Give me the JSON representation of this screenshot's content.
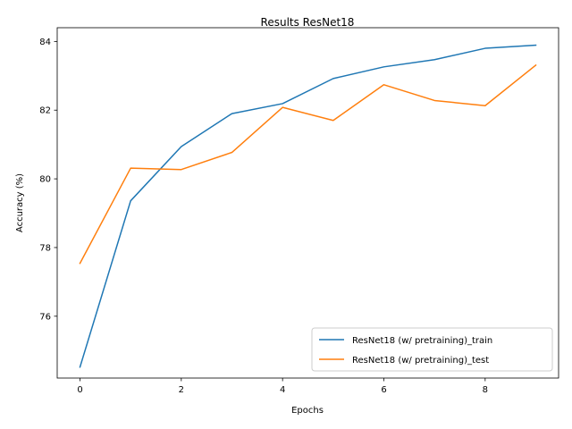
{
  "chart_data": {
    "type": "line",
    "title": "Results ResNet18",
    "xlabel": "Epochs",
    "ylabel": "Accuracy (%)",
    "x": [
      0,
      1,
      2,
      3,
      4,
      5,
      6,
      7,
      8,
      9
    ],
    "xlim": [
      -0.45,
      9.45
    ],
    "ylim": [
      74.2,
      84.4
    ],
    "xticks": [
      0,
      2,
      4,
      6,
      8
    ],
    "yticks": [
      76,
      78,
      80,
      82,
      84
    ],
    "grid": false,
    "legend": "lower-right",
    "series": [
      {
        "name": "ResNet18 (w/ pretraining)_train",
        "color": "#1f77b4",
        "values": [
          74.52,
          79.36,
          80.94,
          81.9,
          82.19,
          82.92,
          83.26,
          83.47,
          83.8,
          83.89
        ]
      },
      {
        "name": "ResNet18 (w/ pretraining)_test",
        "color": "#ff7f0e",
        "values": [
          77.54,
          80.31,
          80.27,
          80.77,
          82.08,
          81.7,
          82.74,
          82.28,
          82.13,
          83.31
        ]
      }
    ]
  }
}
